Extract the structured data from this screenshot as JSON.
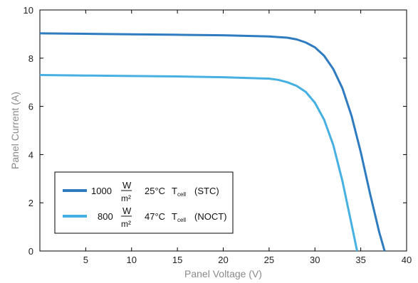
{
  "chart_data": {
    "type": "line",
    "xlabel": "Panel Voltage (V)",
    "ylabel": "Panel Current (A)",
    "xlim": [
      0,
      40
    ],
    "ylim": [
      0,
      10
    ],
    "x_ticks": [
      5,
      10,
      15,
      20,
      25,
      30,
      35,
      40
    ],
    "y_ticks": [
      0,
      2,
      4,
      6,
      8,
      10
    ],
    "grid": false,
    "legend_position": "bottom-left",
    "series": [
      {
        "name": "1000 W/m² 25°C T cell (STC)",
        "color": "#2e7bbf",
        "x": [
          0,
          5,
          10,
          15,
          20,
          25,
          27,
          28,
          29,
          30,
          31,
          32,
          33,
          34,
          35,
          36,
          37,
          37.6
        ],
        "y": [
          9.03,
          9.01,
          8.99,
          8.97,
          8.95,
          8.9,
          8.85,
          8.78,
          8.65,
          8.45,
          8.1,
          7.55,
          6.75,
          5.6,
          4.1,
          2.4,
          0.8,
          0
        ]
      },
      {
        "name": "800 W/m² 47°C T cell (NOCT)",
        "color": "#45b0e1",
        "x": [
          0,
          5,
          10,
          15,
          20,
          25,
          26,
          27,
          28,
          29,
          30,
          31,
          32,
          33,
          34,
          34.6
        ],
        "y": [
          7.3,
          7.28,
          7.26,
          7.24,
          7.21,
          7.15,
          7.1,
          7.0,
          6.85,
          6.6,
          6.15,
          5.45,
          4.4,
          2.9,
          1.1,
          0
        ]
      }
    ],
    "legend": {
      "items": [
        {
          "prefix": "1000",
          "frac_num": "W",
          "frac_den": "m²",
          "temp": "25°C",
          "tcell": "T",
          "tcell_sub": "cell",
          "suffix": "(STC)"
        },
        {
          "prefix": "800",
          "frac_num": "W",
          "frac_den": "m²",
          "temp": "47°C",
          "tcell": "T",
          "tcell_sub": "cell",
          "suffix": "(NOCT)"
        }
      ]
    }
  }
}
